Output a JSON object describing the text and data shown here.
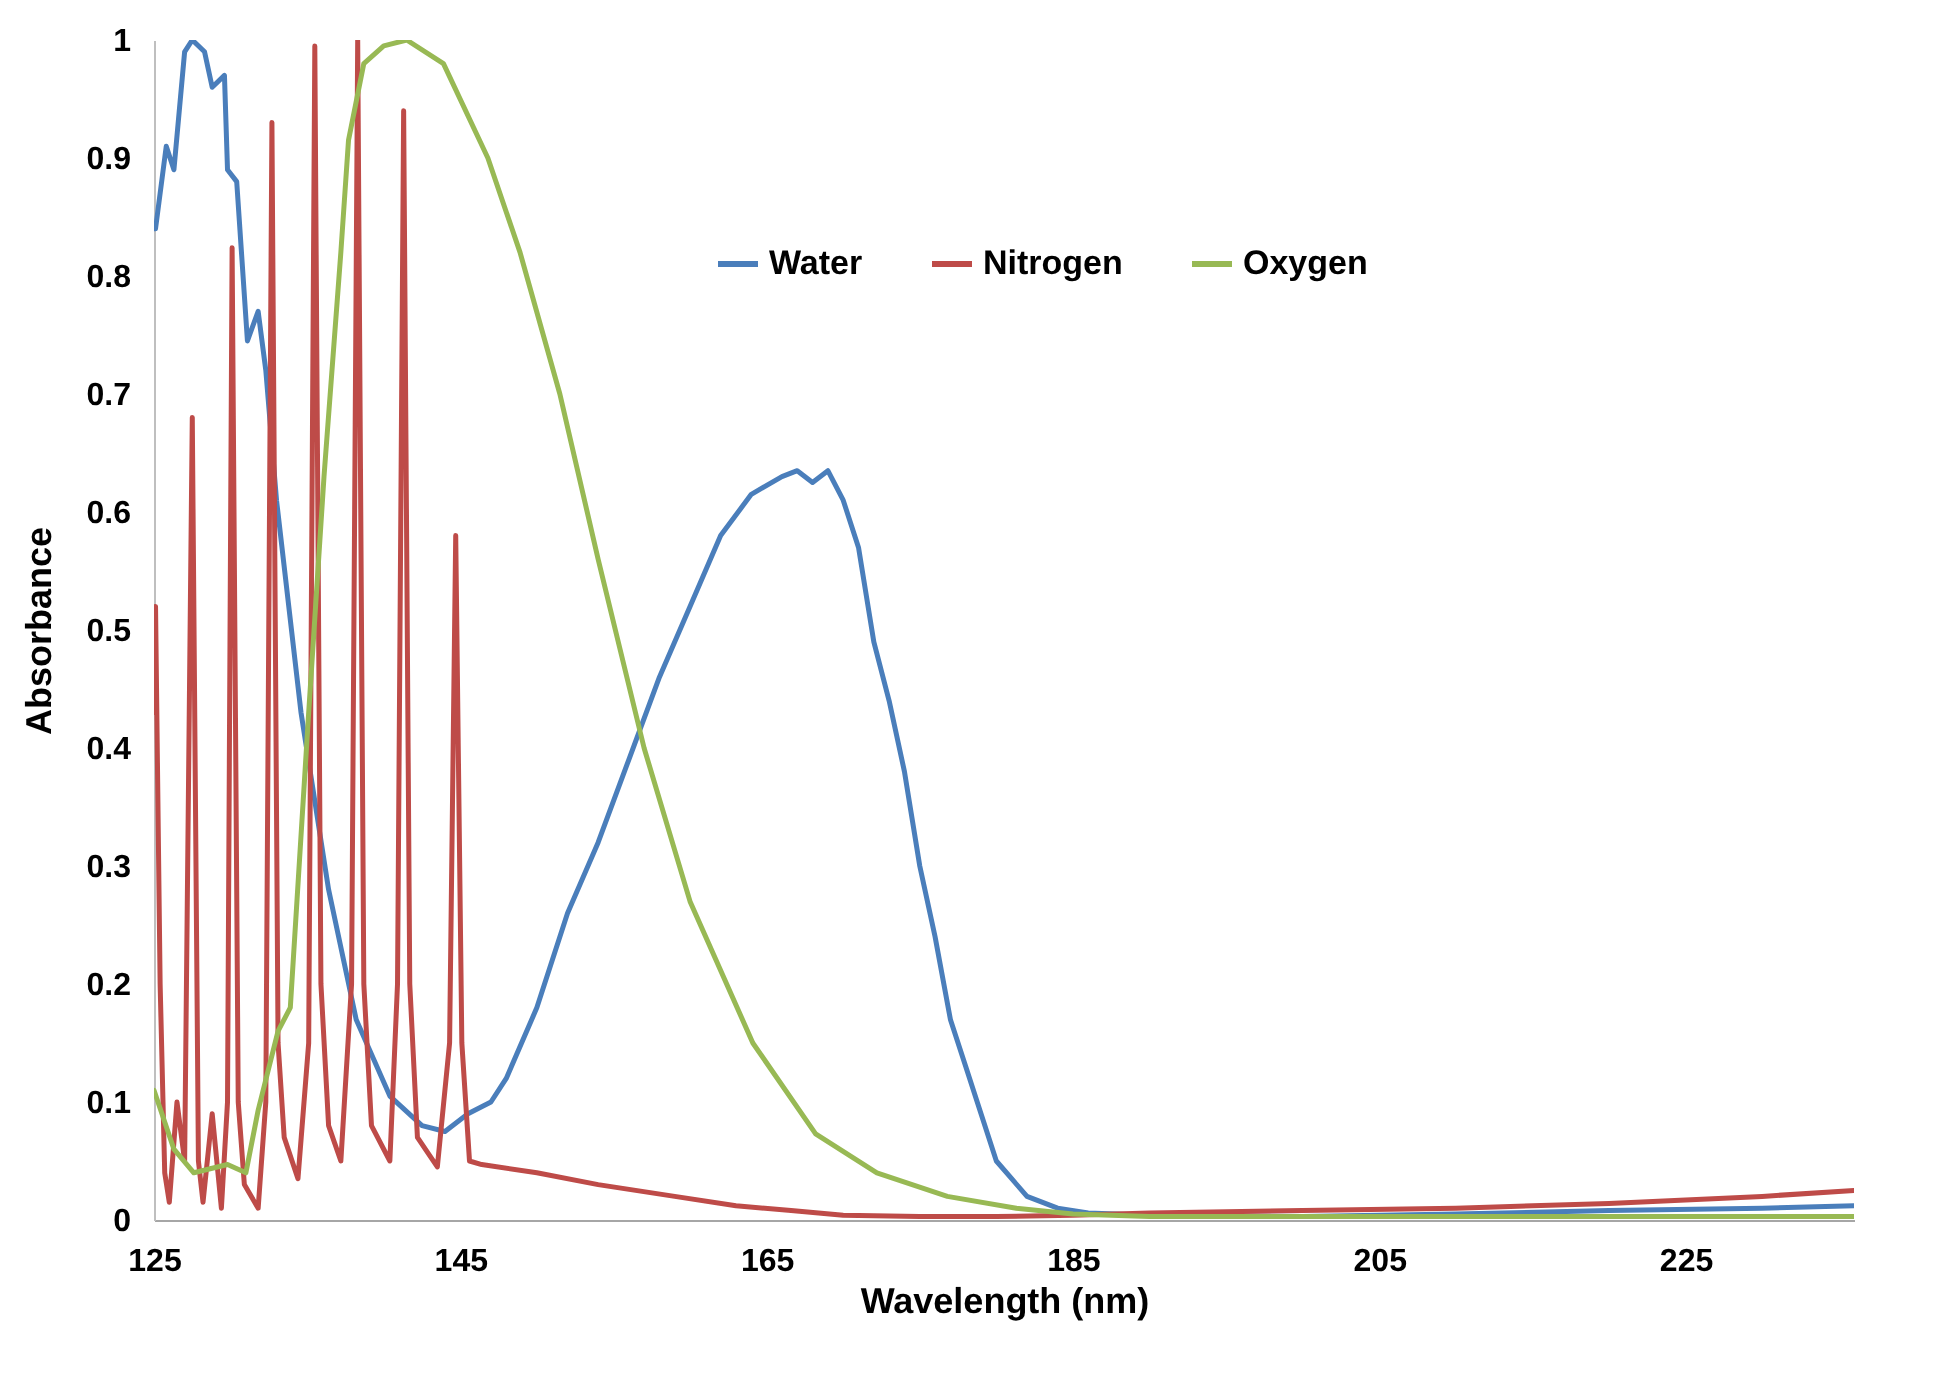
{
  "chart_data": {
    "type": "line",
    "xlabel": "Wavelength (nm)",
    "ylabel": "Absorbance",
    "xlim": [
      125,
      236
    ],
    "xticks": [
      125,
      145,
      165,
      185,
      205,
      225
    ],
    "ylim": [
      0,
      1
    ],
    "yticks": [
      0,
      0.1,
      0.2,
      0.3,
      0.4,
      0.5,
      0.6,
      0.7,
      0.8,
      0.9,
      1
    ],
    "grid": false,
    "legend": "top",
    "marker": "none",
    "line_style": "solid",
    "series": [
      {
        "name": "Water",
        "color": "#4a7ebb",
        "x": [
          125,
          125.1,
          125.8,
          126.3,
          127,
          127.5,
          128.3,
          128.8,
          129.6,
          129.8,
          130.4,
          131.1,
          131.8,
          132.3,
          133,
          134.6,
          136.4,
          138.2,
          140.4,
          142.5,
          144,
          145.5,
          147,
          148,
          150,
          152,
          154,
          156,
          158,
          160,
          162,
          164,
          166,
          167,
          168,
          169,
          170,
          171,
          172,
          173,
          174,
          175,
          176,
          177,
          178,
          179,
          180,
          181,
          182,
          184,
          186,
          190,
          200,
          210,
          220,
          230,
          236
        ],
        "values": [
          0.84,
          0.84,
          0.91,
          0.89,
          0.99,
          1.0,
          0.99,
          0.96,
          0.97,
          0.89,
          0.88,
          0.745,
          0.77,
          0.72,
          0.61,
          0.43,
          0.28,
          0.17,
          0.105,
          0.08,
          0.075,
          0.09,
          0.1,
          0.12,
          0.18,
          0.26,
          0.32,
          0.39,
          0.46,
          0.52,
          0.58,
          0.615,
          0.63,
          0.635,
          0.625,
          0.635,
          0.61,
          0.57,
          0.49,
          0.44,
          0.38,
          0.3,
          0.24,
          0.17,
          0.13,
          0.09,
          0.05,
          0.035,
          0.02,
          0.01,
          0.006,
          0.004,
          0.003,
          0.005,
          0.008,
          0.01,
          0.012
        ]
      },
      {
        "name": "Nitrogen",
        "color": "#be4b48",
        "x": [
          125,
          125.1,
          125.4,
          125.7,
          126,
          126.5,
          127,
          127.5,
          127.9,
          128.2,
          128.8,
          129.4,
          129.8,
          130.1,
          130.5,
          130.9,
          131.8,
          132.3,
          132.7,
          133.1,
          133.5,
          134.4,
          135.1,
          135.5,
          135.9,
          136.4,
          137.2,
          137.9,
          138.3,
          138.7,
          139.2,
          140.4,
          140.9,
          141.3,
          141.7,
          142.2,
          143.5,
          144.3,
          144.7,
          145.1,
          145.6,
          146.4,
          150,
          154,
          159,
          163,
          166.6,
          170,
          175,
          180,
          185,
          190,
          200,
          210,
          220,
          230,
          236
        ],
        "values": [
          0.43,
          0.52,
          0.2,
          0.04,
          0.015,
          0.1,
          0.05,
          0.68,
          0.05,
          0.015,
          0.09,
          0.01,
          0.1,
          0.824,
          0.1,
          0.03,
          0.01,
          0.1,
          0.93,
          0.15,
          0.07,
          0.035,
          0.15,
          0.995,
          0.2,
          0.08,
          0.05,
          0.2,
          1.0,
          0.2,
          0.08,
          0.05,
          0.2,
          0.94,
          0.2,
          0.07,
          0.045,
          0.15,
          0.58,
          0.15,
          0.05,
          0.047,
          0.04,
          0.03,
          0.02,
          0.012,
          0.008,
          0.004,
          0.003,
          0.003,
          0.004,
          0.006,
          0.008,
          0.01,
          0.014,
          0.02,
          0.025
        ]
      },
      {
        "name": "Oxygen",
        "color": "#98b954",
        "x": [
          125,
          126.3,
          127.6,
          129.8,
          131,
          131.8,
          133.1,
          133.9,
          135.1,
          136.1,
          137.2,
          137.7,
          138.7,
          140,
          141.5,
          143.9,
          146.8,
          148.9,
          151.5,
          154,
          157,
          160,
          164.1,
          168.2,
          172.2,
          176.8,
          181.3,
          185,
          190,
          200,
          210,
          220,
          230,
          236
        ],
        "values": [
          0.11,
          0.06,
          0.04,
          0.047,
          0.04,
          0.093,
          0.16,
          0.18,
          0.43,
          0.63,
          0.82,
          0.915,
          0.98,
          0.995,
          1.0,
          0.98,
          0.9,
          0.82,
          0.7,
          0.56,
          0.4,
          0.27,
          0.15,
          0.073,
          0.04,
          0.02,
          0.01,
          0.005,
          0.003,
          0.003,
          0.003,
          0.003,
          0.003,
          0.003
        ]
      }
    ]
  }
}
